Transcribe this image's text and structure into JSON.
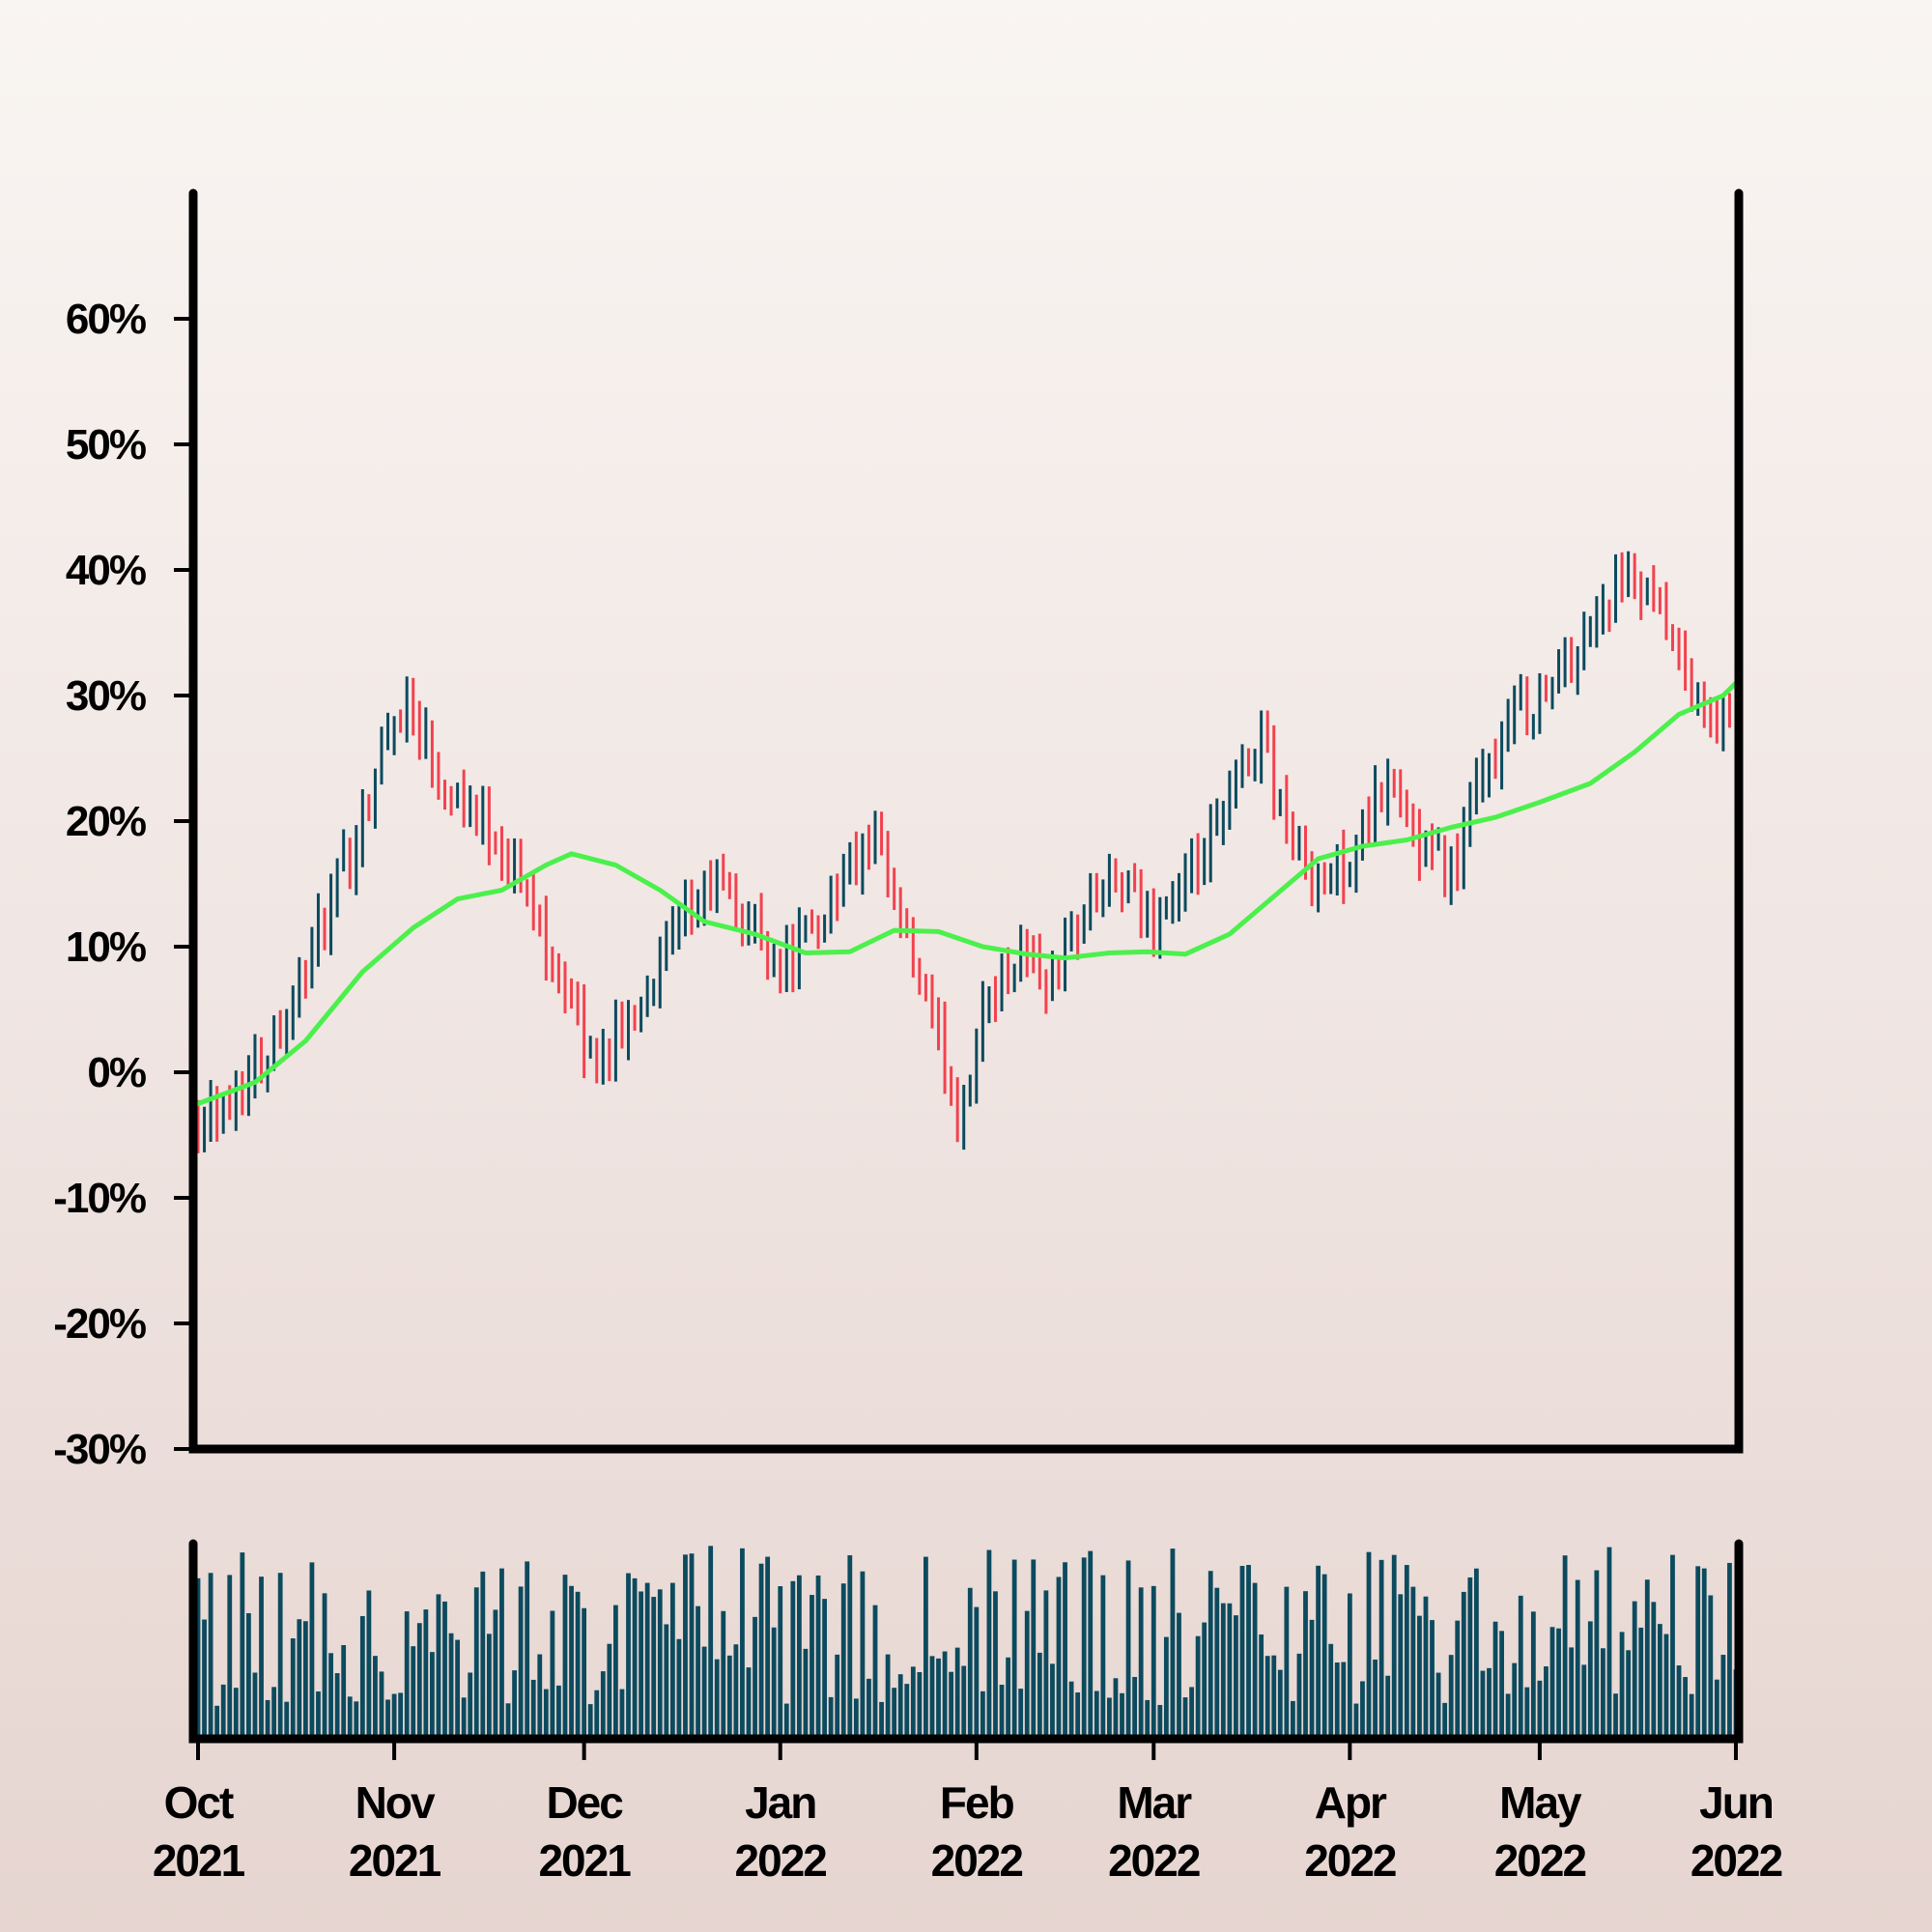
{
  "chart_data": {
    "type": "ohlc",
    "title": "",
    "xlabel": "",
    "ylabel": "",
    "y_unit": "%",
    "ylim": [
      -30,
      70
    ],
    "y_ticks": [
      "60%",
      "50%",
      "40%",
      "30%",
      "20%",
      "10%",
      "0%",
      "-10%",
      "-20%",
      "-30%"
    ],
    "y_tick_values": [
      60,
      50,
      40,
      30,
      20,
      10,
      0,
      -10,
      -20,
      -30
    ],
    "x_range": [
      "2021-10-01",
      "2022-06-01"
    ],
    "x_ticks": [
      {
        "date": "2021-10-01",
        "month": "Oct",
        "year": "2021"
      },
      {
        "date": "2021-11-01",
        "month": "Nov",
        "year": "2021"
      },
      {
        "date": "2021-12-01",
        "month": "Dec",
        "year": "2021"
      },
      {
        "date": "2022-01-01",
        "month": "Jan",
        "year": "2022"
      },
      {
        "date": "2022-02-01",
        "month": "Feb",
        "year": "2022"
      },
      {
        "date": "2022-03-01",
        "month": "Mar",
        "year": "2022"
      },
      {
        "date": "2022-04-01",
        "month": "Apr",
        "year": "2022"
      },
      {
        "date": "2022-05-01",
        "month": "May",
        "year": "2022"
      },
      {
        "date": "2022-06-01",
        "month": "Jun",
        "year": "2022"
      }
    ],
    "grid": false,
    "colors": {
      "up": "#0c4a5e",
      "down": "#f2424f",
      "moving_average": "#4cf04c",
      "volume": "#0c4a5e",
      "frame": "#000000"
    },
    "close_path": [
      [
        "2021-10-01",
        -3
      ],
      [
        "2021-10-06",
        -2
      ],
      [
        "2021-10-11",
        1
      ],
      [
        "2021-10-16",
        6
      ],
      [
        "2021-10-21",
        12
      ],
      [
        "2021-10-26",
        19
      ],
      [
        "2021-10-31",
        27
      ],
      [
        "2021-11-03",
        30
      ],
      [
        "2021-11-08",
        24
      ],
      [
        "2021-11-13",
        21
      ],
      [
        "2021-11-18",
        18
      ],
      [
        "2021-11-23",
        13
      ],
      [
        "2021-11-28",
        7
      ],
      [
        "2021-12-02",
        1
      ],
      [
        "2021-12-07",
        3
      ],
      [
        "2021-12-12",
        8
      ],
      [
        "2021-12-17",
        12
      ],
      [
        "2021-12-22",
        15
      ],
      [
        "2021-12-27",
        12
      ],
      [
        "2022-01-01",
        9
      ],
      [
        "2022-01-06",
        11
      ],
      [
        "2022-01-11",
        16
      ],
      [
        "2022-01-16",
        18
      ],
      [
        "2022-01-21",
        10
      ],
      [
        "2022-01-26",
        2
      ],
      [
        "2022-01-29",
        -3
      ],
      [
        "2022-02-03",
        6
      ],
      [
        "2022-02-08",
        10
      ],
      [
        "2022-02-13",
        7
      ],
      [
        "2022-02-18",
        13
      ],
      [
        "2022-02-23",
        15
      ],
      [
        "2022-02-28",
        12
      ],
      [
        "2022-03-05",
        14
      ],
      [
        "2022-03-10",
        18
      ],
      [
        "2022-03-15",
        24
      ],
      [
        "2022-03-18",
        27
      ],
      [
        "2022-03-23",
        18
      ],
      [
        "2022-03-28",
        15
      ],
      [
        "2022-04-02",
        18
      ],
      [
        "2022-04-07",
        23
      ],
      [
        "2022-04-12",
        18
      ],
      [
        "2022-04-17",
        16
      ],
      [
        "2022-04-22",
        23
      ],
      [
        "2022-04-27",
        29
      ],
      [
        "2022-05-02",
        30
      ],
      [
        "2022-05-07",
        34
      ],
      [
        "2022-05-12",
        38
      ],
      [
        "2022-05-15",
        39
      ],
      [
        "2022-05-20",
        36
      ],
      [
        "2022-05-25",
        30
      ],
      [
        "2022-05-28",
        28
      ],
      [
        "2022-06-01",
        28
      ]
    ],
    "moving_average": [
      [
        "2021-10-01",
        -2.5
      ],
      [
        "2021-10-10",
        -0.8
      ],
      [
        "2021-10-18",
        2.5
      ],
      [
        "2021-10-27",
        8
      ],
      [
        "2021-11-04",
        11.5
      ],
      [
        "2021-11-11",
        13.8
      ],
      [
        "2021-11-18",
        14.5
      ],
      [
        "2021-11-25",
        16.5
      ],
      [
        "2021-11-29",
        17.4
      ],
      [
        "2021-12-06",
        16.5
      ],
      [
        "2021-12-13",
        14.5
      ],
      [
        "2021-12-20",
        12
      ],
      [
        "2021-12-28",
        11
      ],
      [
        "2022-01-05",
        9.5
      ],
      [
        "2022-01-12",
        9.6
      ],
      [
        "2022-01-19",
        11.3
      ],
      [
        "2022-01-26",
        11.2
      ],
      [
        "2022-02-02",
        10
      ],
      [
        "2022-02-09",
        9.4
      ],
      [
        "2022-02-15",
        9.1
      ],
      [
        "2022-02-22",
        9.5
      ],
      [
        "2022-02-28",
        9.6
      ],
      [
        "2022-03-06",
        9.4
      ],
      [
        "2022-03-13",
        11
      ],
      [
        "2022-03-20",
        14
      ],
      [
        "2022-03-27",
        17
      ],
      [
        "2022-04-03",
        18
      ],
      [
        "2022-04-10",
        18.5
      ],
      [
        "2022-04-17",
        19.5
      ],
      [
        "2022-04-24",
        20.3
      ],
      [
        "2022-05-01",
        21.5
      ],
      [
        "2022-05-09",
        23
      ],
      [
        "2022-05-16",
        25.5
      ],
      [
        "2022-05-23",
        28.5
      ],
      [
        "2022-05-30",
        30
      ],
      [
        "2022-06-01",
        31
      ]
    ]
  }
}
